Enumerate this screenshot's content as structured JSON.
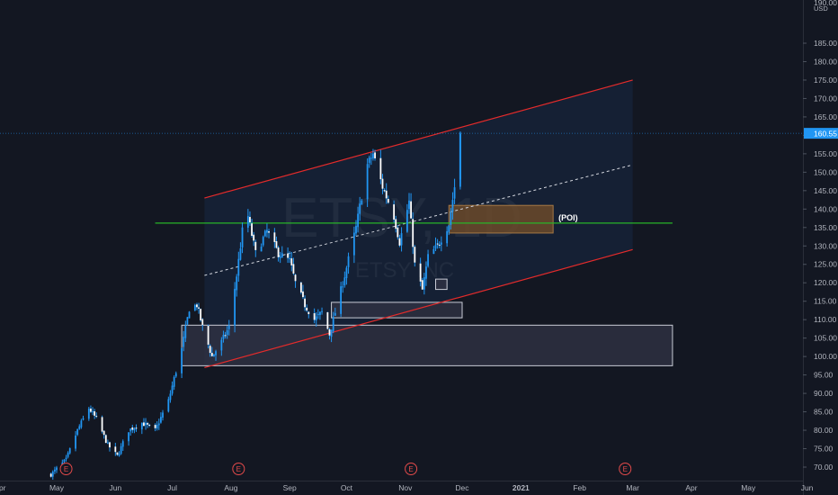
{
  "chart_data": {
    "type": "candlestick",
    "symbol": "ETSY",
    "interval": "1D",
    "watermark_name": "ETSY INC",
    "currency": "USD",
    "last_price": "160.55",
    "y_ticks": [
      70,
      75,
      80,
      85,
      90,
      95,
      100,
      105,
      110,
      115,
      120,
      125,
      130,
      135,
      140,
      145,
      150,
      155,
      160,
      165,
      170,
      175,
      180,
      185
    ],
    "ylim": [
      68,
      190
    ],
    "x_ticks": [
      {
        "label": "Apr",
        "date": "2020-04-01"
      },
      {
        "label": "May",
        "date": "2020-05-01"
      },
      {
        "label": "Jun",
        "date": "2020-06-01"
      },
      {
        "label": "Jul",
        "date": "2020-07-01"
      },
      {
        "label": "Aug",
        "date": "2020-08-01"
      },
      {
        "label": "Sep",
        "date": "2020-09-01"
      },
      {
        "label": "Oct",
        "date": "2020-10-01"
      },
      {
        "label": "Nov",
        "date": "2020-11-01"
      },
      {
        "label": "Dec",
        "date": "2020-12-01"
      },
      {
        "label": "2021",
        "date": "2021-01-01"
      },
      {
        "label": "Feb",
        "date": "2021-02-01"
      },
      {
        "label": "Mar",
        "date": "2021-03-01"
      },
      {
        "label": "Apr",
        "date": "2021-04-01"
      },
      {
        "label": "May",
        "date": "2021-05-01"
      },
      {
        "label": "Jun",
        "date": "2021-06-01"
      }
    ],
    "price_path": [
      [
        "2020-04-28",
        68
      ],
      [
        "2020-05-06",
        72
      ],
      [
        "2020-05-12",
        80
      ],
      [
        "2020-05-18",
        86
      ],
      [
        "2020-05-22",
        83
      ],
      [
        "2020-05-28",
        76
      ],
      [
        "2020-06-02",
        73
      ],
      [
        "2020-06-08",
        80
      ],
      [
        "2020-06-15",
        82
      ],
      [
        "2020-06-22",
        80
      ],
      [
        "2020-06-29",
        88
      ],
      [
        "2020-07-06",
        102
      ],
      [
        "2020-07-10",
        113
      ],
      [
        "2020-07-14",
        114
      ],
      [
        "2020-07-17",
        108
      ],
      [
        "2020-07-22",
        100
      ],
      [
        "2020-07-27",
        104
      ],
      [
        "2020-07-31",
        108
      ],
      [
        "2020-08-04",
        122
      ],
      [
        "2020-08-07",
        134
      ],
      [
        "2020-08-10",
        138
      ],
      [
        "2020-08-14",
        128
      ],
      [
        "2020-08-20",
        134
      ],
      [
        "2020-08-26",
        128
      ],
      [
        "2020-09-01",
        126
      ],
      [
        "2020-09-04",
        120
      ],
      [
        "2020-09-09",
        114
      ],
      [
        "2020-09-14",
        110
      ],
      [
        "2020-09-18",
        112
      ],
      [
        "2020-09-22",
        106
      ],
      [
        "2020-09-25",
        112
      ],
      [
        "2020-09-30",
        122
      ],
      [
        "2020-10-06",
        135
      ],
      [
        "2020-10-12",
        152
      ],
      [
        "2020-10-15",
        155
      ],
      [
        "2020-10-20",
        146
      ],
      [
        "2020-10-26",
        138
      ],
      [
        "2020-10-29",
        131
      ],
      [
        "2020-11-03",
        142
      ],
      [
        "2020-11-06",
        125
      ],
      [
        "2020-11-10",
        118
      ],
      [
        "2020-11-13",
        127
      ],
      [
        "2020-11-18",
        130
      ],
      [
        "2020-11-24",
        136
      ],
      [
        "2020-11-27",
        146
      ],
      [
        "2020-11-30",
        160.5
      ]
    ],
    "channel": {
      "upper": [
        [
          "2020-07-18",
          143
        ],
        [
          "2021-03-01",
          175
        ]
      ],
      "middle": [
        [
          "2020-07-18",
          122
        ],
        [
          "2021-03-01",
          152
        ]
      ],
      "lower": [
        [
          "2020-07-18",
          97
        ],
        [
          "2021-03-01",
          129
        ]
      ]
    },
    "support_line": {
      "price": 136.2,
      "from": "2020-06-22",
      "to": "2021-03-22"
    },
    "zones": [
      {
        "from": "2020-07-06",
        "to": "2021-03-22",
        "low": 97.5,
        "high": 108.5,
        "kind": "gray"
      },
      {
        "from": "2020-09-23",
        "to": "2020-12-01",
        "low": 110.5,
        "high": 114.7,
        "kind": "gray"
      },
      {
        "from": "2020-11-17",
        "to": "2020-11-23",
        "low": 118.2,
        "high": 121,
        "kind": "gray"
      },
      {
        "from": "2020-11-24",
        "to": "2021-01-18",
        "low": 133.5,
        "high": 141,
        "kind": "poi",
        "label": "(POI)"
      }
    ],
    "earnings_markers": [
      {
        "date": "2020-05-06",
        "label": "E"
      },
      {
        "date": "2020-08-05",
        "label": "E"
      },
      {
        "date": "2020-11-04",
        "label": "E"
      },
      {
        "date": "2021-02-25",
        "label": "E"
      }
    ],
    "colors": {
      "background": "#131722",
      "candle": "#2196f3",
      "channel": "#e32b2b",
      "support": "#28b428",
      "poi_fill": "#6b4a2a",
      "zone_fill": "#2f3244",
      "zone_border": "#c9ccd6",
      "last_price": "#2196f3"
    }
  }
}
